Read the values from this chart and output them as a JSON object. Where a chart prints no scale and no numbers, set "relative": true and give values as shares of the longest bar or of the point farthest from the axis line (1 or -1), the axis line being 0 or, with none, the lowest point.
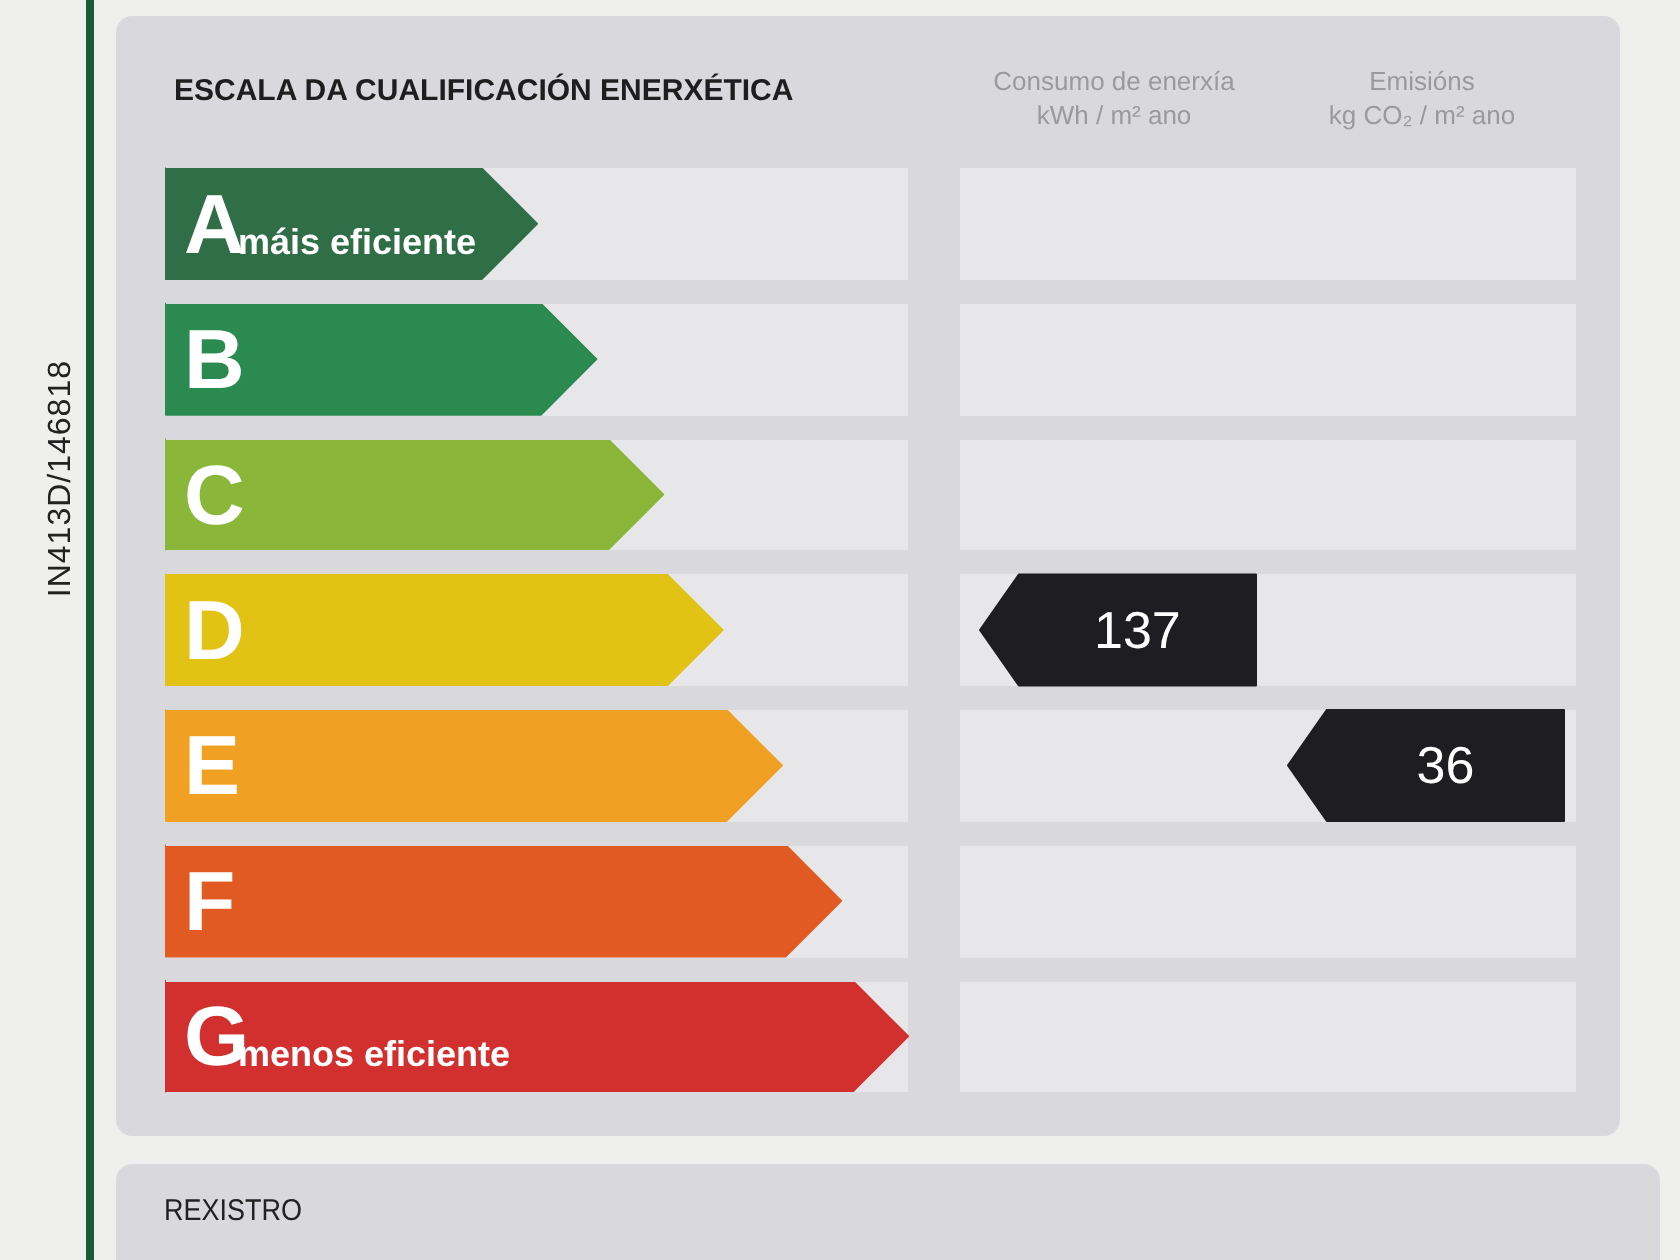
{
  "chart_data": [
    {
      "type": "bar",
      "orientation": "horizontal",
      "relative": true,
      "title": "ESCALA DA CUALIFICACIÓN ENERXÉTICA",
      "categories": [
        "A",
        "B",
        "C",
        "D",
        "E",
        "F",
        "G"
      ],
      "values": [
        0.5,
        0.58,
        0.67,
        0.75,
        0.83,
        0.91,
        1
      ],
      "colors": [
        "#2f6e46",
        "#2a8a50",
        "#8ab73a",
        "#e3c216",
        "#f0a022",
        "#e05a22",
        "#d22f2f"
      ],
      "grid": "y",
      "annotations": [
        "IN413D/146818",
        {
          "text": "máis eficiente",
          "y": "A"
        },
        {
          "text": "menos eficiente",
          "y": "G"
        },
        "REXISTRO"
      ]
    },
    {
      "type": "heatmap",
      "categories": [
        "Consumo de enerxía\nkWh / m² ano",
        "Emisións\nkg CO₂ / m² ano"
      ],
      "y_categories": [
        "A",
        "B",
        "C",
        "D",
        "E",
        "F",
        "G"
      ],
      "cells": [
        [
          null,
          null
        ],
        [
          null,
          null
        ],
        [
          null,
          null
        ],
        [
          137,
          null
        ],
        [
          null,
          36
        ],
        [
          null,
          null
        ],
        [
          null,
          null
        ]
      ],
      "color": "#1e1e22",
      "data_labels": true,
      "grid": "y",
      "tick_labels": "x"
    }
  ]
}
